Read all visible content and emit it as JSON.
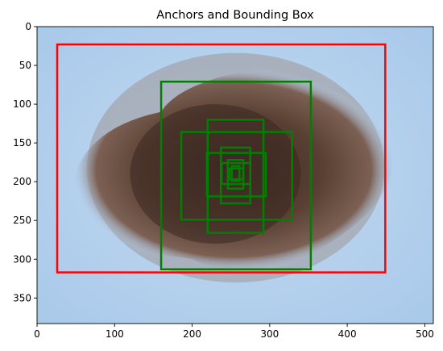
{
  "chart_data": {
    "type": "image",
    "title": "Anchors and Bounding Box",
    "xlabel": "",
    "ylabel": "",
    "xlim": [
      0,
      511
    ],
    "ylim": [
      383,
      0
    ],
    "x_ticks": [
      0,
      100,
      200,
      300,
      400,
      500
    ],
    "y_ticks": [
      0,
      50,
      100,
      150,
      200,
      250,
      300,
      350
    ],
    "image": {
      "description_free": true,
      "background_color": "#b7d3ee",
      "lesion_color": "#5a3f33",
      "lesion_center": [
        250,
        182
      ],
      "lesion_radii": [
        188,
        148
      ]
    },
    "bounding_box": {
      "color": "#ff0000",
      "x0": 26,
      "y0": 23,
      "x1": 449,
      "y1": 317
    },
    "anchors": {
      "color": "#008000",
      "center": [
        256,
        190
      ],
      "boxes": [
        {
          "x0": 160,
          "y0": 71,
          "x1": 353,
          "y1": 313
        },
        {
          "x0": 186,
          "y0": 136,
          "x1": 329,
          "y1": 249
        },
        {
          "x0": 220,
          "y0": 120,
          "x1": 292,
          "y1": 266
        },
        {
          "x0": 219,
          "y0": 163,
          "x1": 295,
          "y1": 219
        },
        {
          "x0": 237,
          "y0": 156,
          "x1": 275,
          "y1": 228
        },
        {
          "x0": 238,
          "y0": 176,
          "x1": 275,
          "y1": 203
        },
        {
          "x0": 246,
          "y0": 172,
          "x1": 266,
          "y1": 209
        },
        {
          "x0": 248,
          "y0": 183,
          "x1": 266,
          "y1": 197
        },
        {
          "x0": 251,
          "y0": 180,
          "x1": 261,
          "y1": 199
        }
      ]
    }
  }
}
